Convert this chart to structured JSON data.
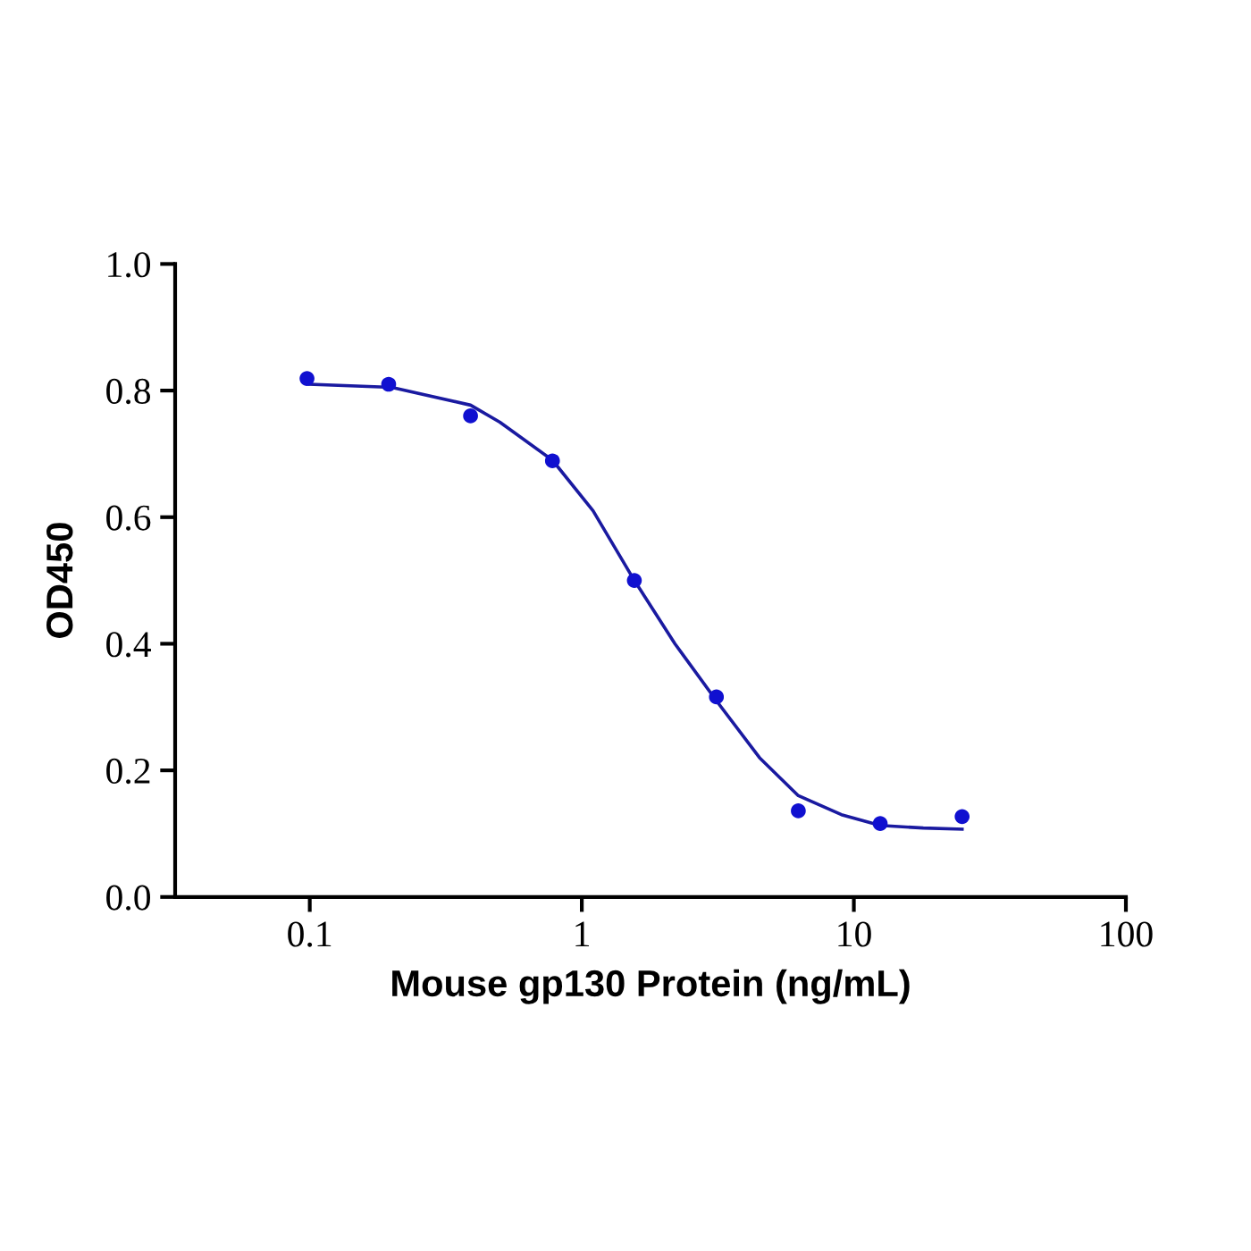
{
  "chart_data": {
    "type": "scatter",
    "xlabel": "Mouse gp130 Protein (ng/mL)",
    "ylabel": "OD450",
    "log": "x",
    "xlim": [
      0.032,
      100
    ],
    "xticks": [
      0.1,
      1,
      10,
      100
    ],
    "ylim": [
      0,
      1.0
    ],
    "yticks": [
      {
        "value": 0,
        "label": "0.0"
      },
      0.2,
      0.4,
      0.6,
      0.8,
      {
        "value": 1.0,
        "label": "1.0"
      }
    ],
    "grid": false,
    "legend": false,
    "series": [
      {
        "color": "#1010d0",
        "marker": "circle",
        "x": [
          0.0977,
          0.195,
          0.39,
          0.78,
          1.56,
          3.125,
          6.25,
          12.5,
          25
        ],
        "values": [
          0.819,
          0.81,
          0.76,
          0.689,
          0.5,
          0.316,
          0.136,
          0.116,
          0.127
        ]
      },
      {
        "type": "line",
        "color": "#1a1aa0",
        "marker": "none",
        "line_style": "solid",
        "x": [
          0.1,
          0.2,
          0.39,
          0.5,
          0.78,
          1.1,
          1.56,
          2.2,
          3.125,
          4.5,
          6.25,
          9,
          12.5,
          18,
          25
        ],
        "values": [
          0.81,
          0.805,
          0.777,
          0.75,
          0.69,
          0.61,
          0.5,
          0.4,
          0.31,
          0.22,
          0.16,
          0.13,
          0.113,
          0.109,
          0.107
        ]
      }
    ]
  }
}
